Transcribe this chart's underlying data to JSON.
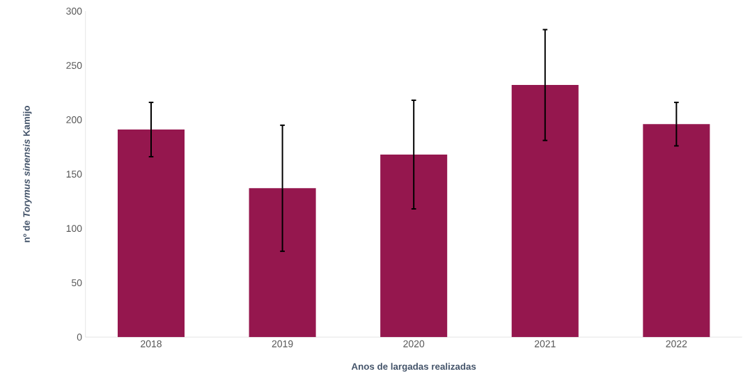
{
  "chart_data": {
    "type": "bar",
    "xlabel": "Anos de largadas realizadas",
    "ylabel": "nº de *Torymus sinensis* Kamijo",
    "categories": [
      "2018",
      "2019",
      "2020",
      "2021",
      "2022"
    ],
    "values": [
      191,
      137,
      168,
      232,
      196
    ],
    "errors": [
      25,
      58,
      50,
      51,
      20
    ],
    "color": "#95174e",
    "ylim": [
      0,
      300
    ],
    "yticks": [
      0,
      50,
      100,
      150,
      200,
      250,
      300
    ]
  }
}
